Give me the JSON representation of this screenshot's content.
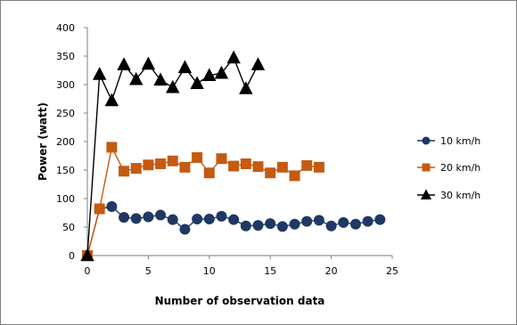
{
  "chart_data": {
    "type": "line",
    "title": "",
    "xlabel": "Number of observation data",
    "ylabel": "Power (watt)",
    "xlim": [
      0,
      25
    ],
    "ylim": [
      0,
      400
    ],
    "x_ticks": [
      "0",
      "5",
      "10",
      "15",
      "20",
      "25"
    ],
    "y_ticks": [
      "0",
      "50",
      "100",
      "150",
      "200",
      "250",
      "300",
      "350",
      "400"
    ],
    "grid": false,
    "legend_position": "right",
    "series": [
      {
        "name": "10 km/h",
        "marker": "circle",
        "color": "#1f3864",
        "x": [
          0,
          1,
          2,
          3,
          4,
          5,
          6,
          7,
          8,
          9,
          10,
          11,
          12,
          13,
          14,
          15,
          16,
          17,
          18,
          19,
          20,
          21,
          22,
          23,
          24
        ],
        "y": [
          0,
          82,
          86,
          67,
          65,
          68,
          71,
          63,
          46,
          64,
          64,
          69,
          63,
          52,
          53,
          56,
          51,
          55,
          60,
          62,
          52,
          58,
          55,
          60,
          63
        ]
      },
      {
        "name": "20 km/h",
        "marker": "square",
        "color": "#c55a11",
        "x": [
          0,
          1,
          2,
          3,
          4,
          5,
          6,
          7,
          8,
          9,
          10,
          11,
          12,
          13,
          14,
          15,
          16,
          17,
          18,
          19
        ],
        "y": [
          0,
          82,
          190,
          148,
          153,
          159,
          161,
          166,
          155,
          172,
          145,
          170,
          157,
          161,
          156,
          145,
          155,
          140,
          158,
          155
        ]
      },
      {
        "name": "30 km/h",
        "marker": "triangle",
        "color": "#000000",
        "x": [
          0,
          1,
          2,
          3,
          4,
          5,
          6,
          7,
          8,
          9,
          10,
          11,
          12,
          13,
          14
        ],
        "y": [
          0,
          318,
          272,
          335,
          309,
          336,
          308,
          295,
          330,
          302,
          316,
          320,
          347,
          293,
          335
        ]
      }
    ]
  }
}
